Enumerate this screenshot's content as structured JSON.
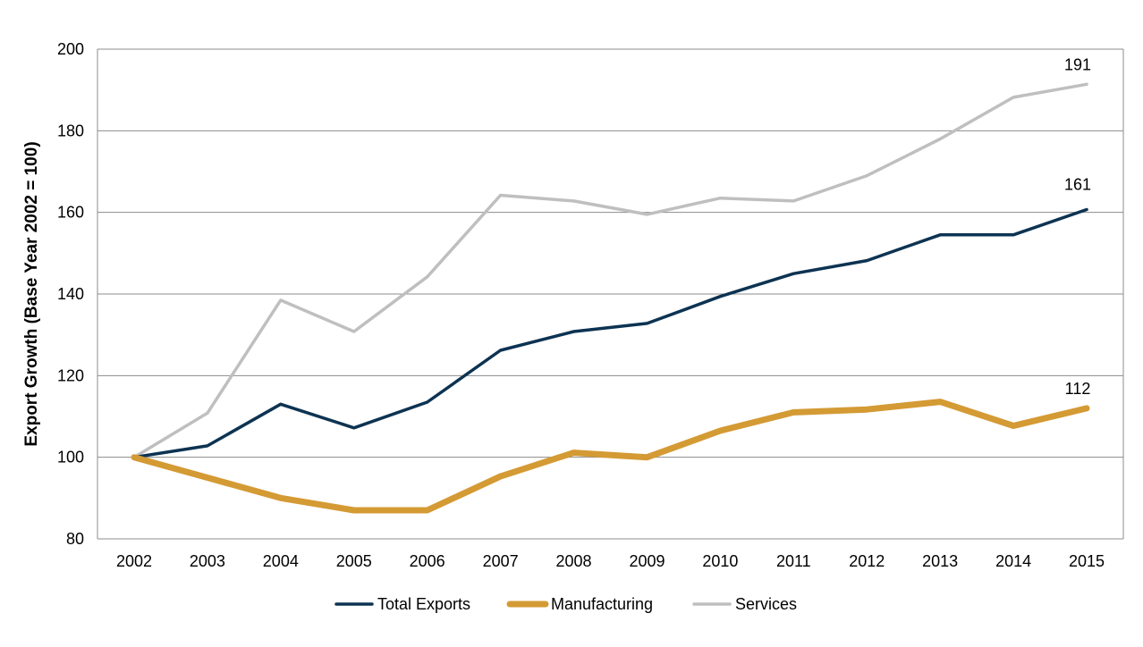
{
  "chart_data": {
    "type": "line",
    "categories": [
      "2002",
      "2003",
      "2004",
      "2005",
      "2006",
      "2007",
      "2008",
      "2009",
      "2010",
      "2011",
      "2012",
      "2013",
      "2014",
      "2015"
    ],
    "ylabel": "Export Growth (Base Year 2002 = 100)",
    "xlabel": "",
    "ylim": [
      80,
      200
    ],
    "yticks": [
      80,
      100,
      120,
      140,
      160,
      180,
      200
    ],
    "grid": "horizontal",
    "legend_position": "bottom",
    "series": [
      {
        "name": "Total Exports",
        "color": "#0d3352",
        "values": [
          100,
          102.8,
          113,
          107.2,
          113.5,
          126.2,
          130.8,
          132.8,
          139.4,
          145,
          148.2,
          154.5,
          154.5,
          160.7
        ],
        "end_label": "161"
      },
      {
        "name": "Manufacturing",
        "color": "#d49a34",
        "values": [
          100,
          95,
          90,
          87,
          87,
          95.3,
          101.1,
          100,
          106.5,
          111,
          111.7,
          113.6,
          107.7,
          112
        ],
        "end_label": "112"
      },
      {
        "name": "Services",
        "color": "#bfbfbf",
        "values": [
          100,
          110.8,
          138.5,
          130.8,
          144.2,
          164.2,
          162.8,
          159.5,
          163.5,
          162.8,
          169,
          178,
          188.2,
          191.4
        ],
        "end_label": "191"
      }
    ]
  }
}
